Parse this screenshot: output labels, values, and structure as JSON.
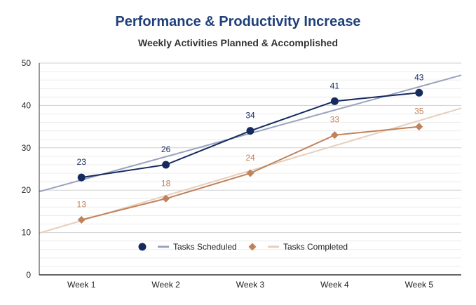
{
  "chart_data": {
    "type": "line",
    "title": "Performance & Productivity Increase",
    "subtitle": "Weekly Activities Planned & Accomplished",
    "categories": [
      "Week 1",
      "Week 2",
      "Week 3",
      "Week 4",
      "Week 5"
    ],
    "ylim": [
      0,
      50
    ],
    "yticks": [
      0,
      10,
      20,
      30,
      40,
      50
    ],
    "grid": true,
    "legend_position": "inside-lower-center",
    "series": [
      {
        "name": "Tasks Scheduled",
        "values": [
          23,
          26,
          34,
          41,
          43
        ],
        "marker": "circle",
        "color": "#162a5e",
        "trendline": true,
        "trend_color": "#9aa3bd"
      },
      {
        "name": "Tasks Completed",
        "values": [
          13,
          18,
          24,
          33,
          35
        ],
        "marker": "diamond",
        "color": "#c0825a",
        "trendline": true,
        "trend_color": "#e6cfbe"
      }
    ],
    "title_color": "#1f3f7a",
    "subtitle_color": "#333333"
  }
}
